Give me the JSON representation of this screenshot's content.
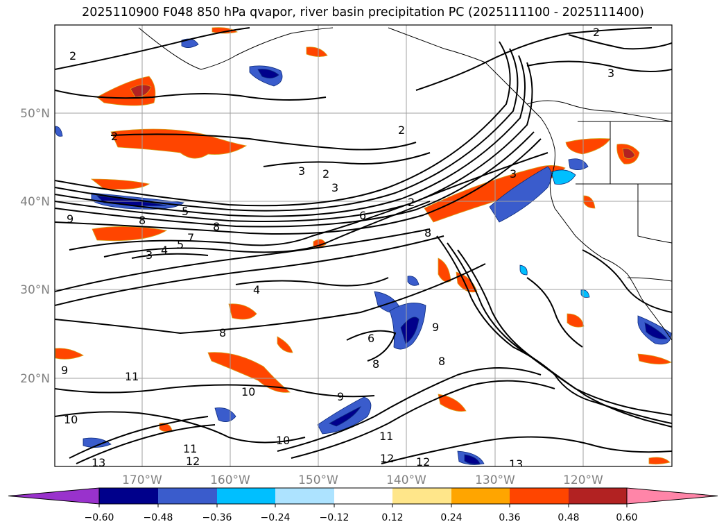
{
  "title": "2025110900 F048 850 hPa qvapor, river basin precipitation PC (2025111100 - 2025111400)",
  "lat_labels": [
    "50°N",
    "40°N",
    "30°N",
    "20°N"
  ],
  "lon_labels": [
    "170°W",
    "160°W",
    "150°W",
    "140°W",
    "130°W",
    "120°W"
  ],
  "colorbar": {
    "colors": [
      "#9932cc",
      "#00008b",
      "#3a5ccc",
      "#00bfff",
      "#ade3ff",
      "#ffffff",
      "#ffe68a",
      "#ffa500",
      "#ff4500",
      "#b22222",
      "#ff85a8"
    ],
    "tick_labels": [
      "−0.60",
      "−0.48",
      "−0.36",
      "−0.24",
      "−0.12",
      "0.12",
      "0.24",
      "0.36",
      "0.48",
      "0.60"
    ]
  },
  "contour_labels": [
    "2",
    "2",
    "2",
    "2",
    "2",
    "2",
    "3",
    "3",
    "3",
    "3",
    "3",
    "4",
    "4",
    "5",
    "5",
    "6",
    "6",
    "7",
    "8",
    "8",
    "8",
    "8",
    "8",
    "8",
    "9",
    "9",
    "9",
    "9",
    "10",
    "10",
    "10",
    "11",
    "11",
    "11",
    "12",
    "12",
    "12",
    "13",
    "13"
  ]
}
